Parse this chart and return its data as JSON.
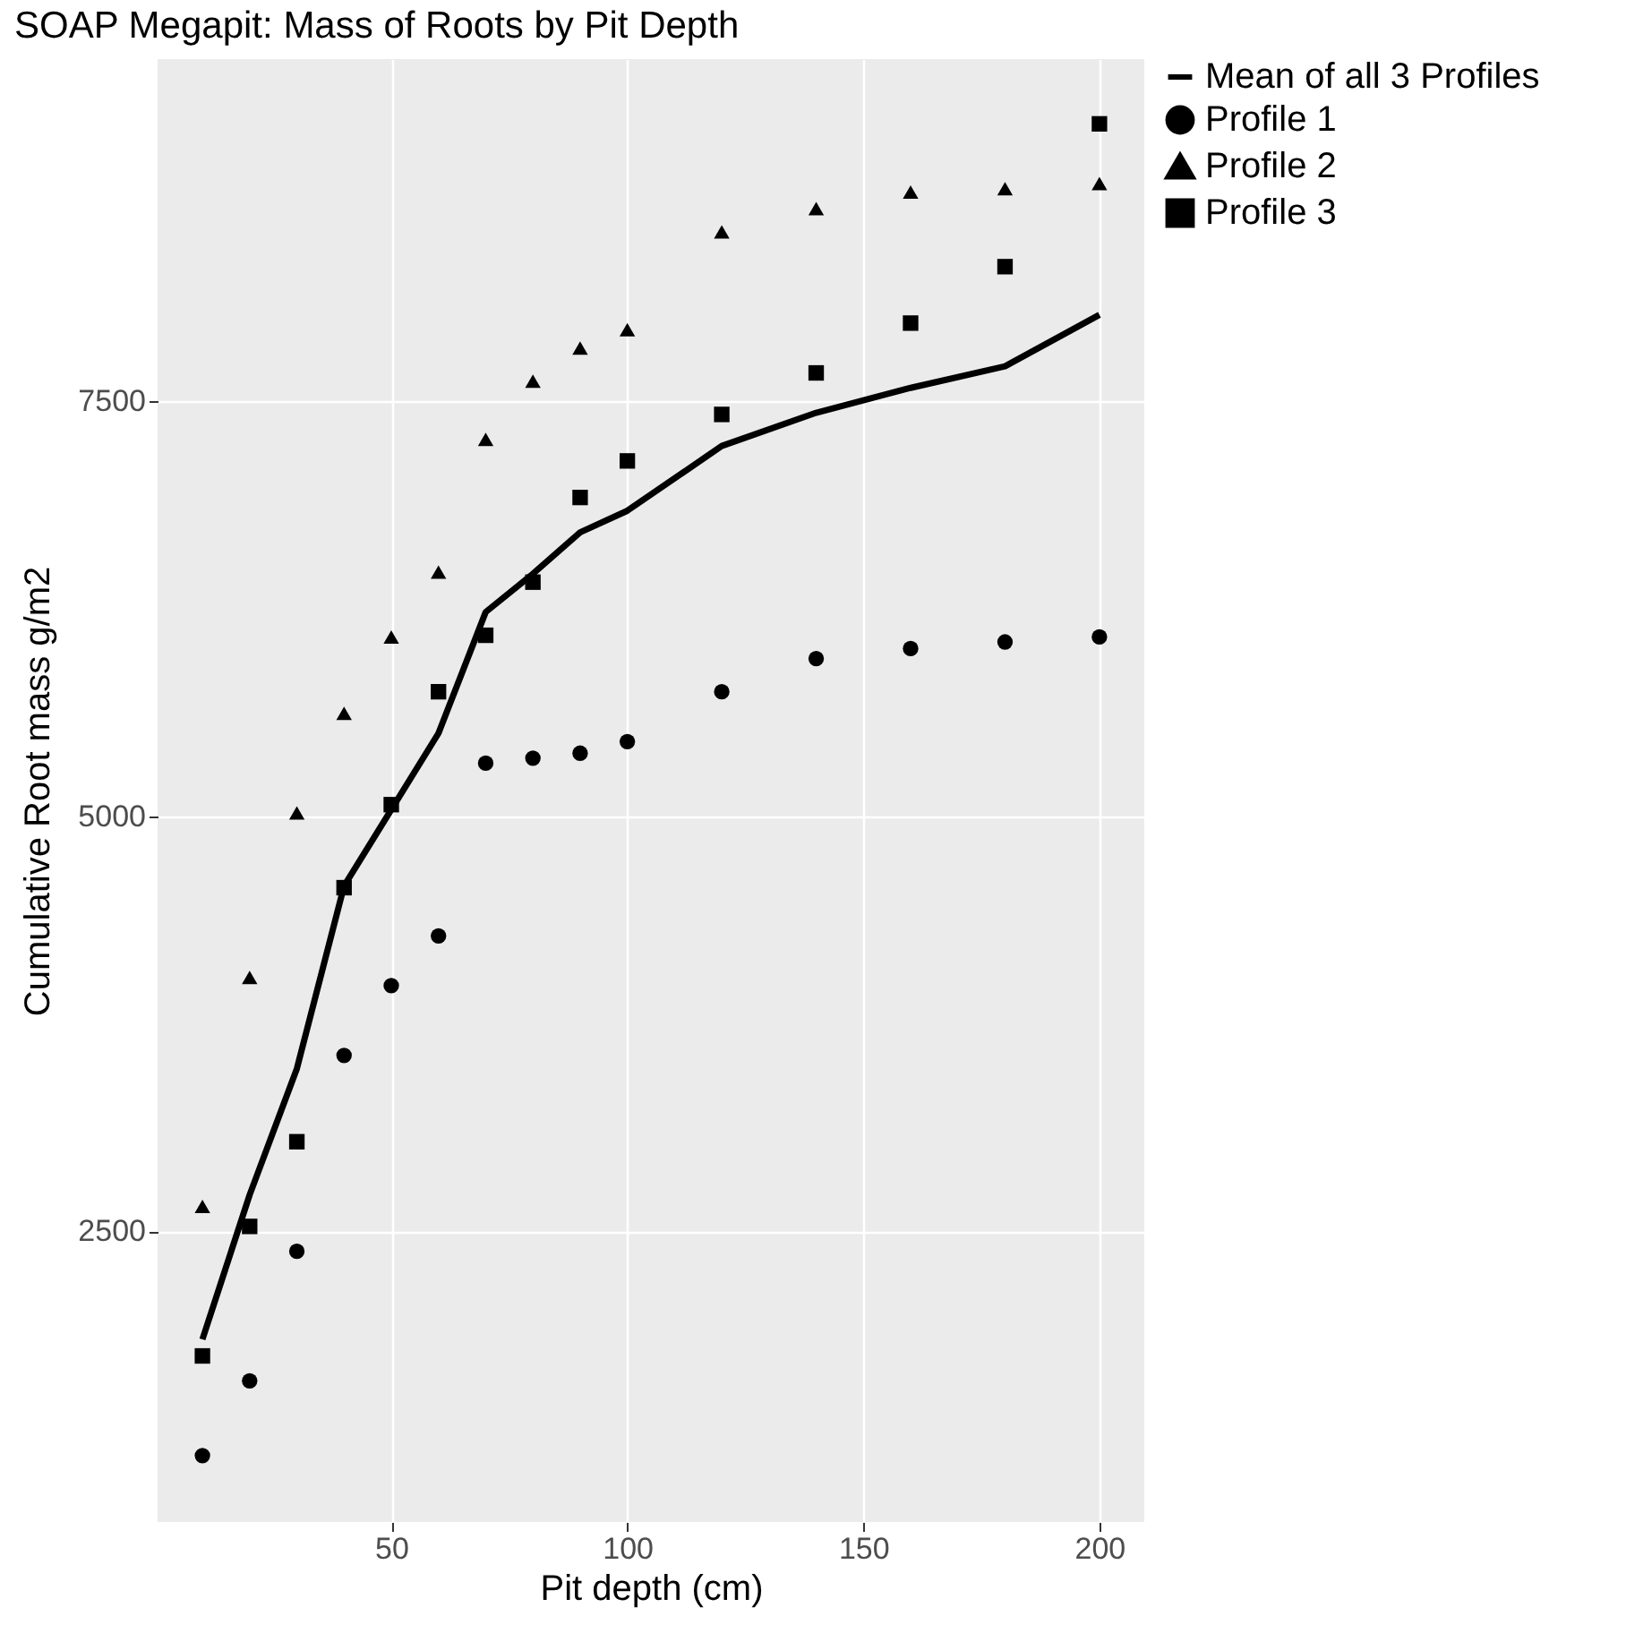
{
  "chart_data": {
    "type": "scatter",
    "title": "SOAP Megapit: Mass of Roots by Pit Depth",
    "xlabel": "Pit depth (cm)",
    "ylabel": "Cumulative Root mass g/m2",
    "x": [
      10,
      20,
      30,
      40,
      50,
      60,
      70,
      80,
      90,
      100,
      120,
      140,
      160,
      180,
      200
    ],
    "series": [
      {
        "name": "Mean of all 3 Profiles",
        "type": "line",
        "marker": "none",
        "line_style": "solid",
        "color": "#000000",
        "values": [
          1850,
          2720,
          3480,
          4580,
          5040,
          5500,
          6230,
          6460,
          6710,
          6840,
          7230,
          7430,
          7580,
          7710,
          8020
        ]
      },
      {
        "name": "Profile 1",
        "marker": "circle",
        "color": "#000000",
        "values": [
          1150,
          1600,
          2380,
          3560,
          3980,
          4280,
          5320,
          5350,
          5380,
          5450,
          5750,
          5950,
          6010,
          6050,
          6080
        ]
      },
      {
        "name": "Profile 2",
        "marker": "triangle",
        "color": "#000000",
        "values": [
          2650,
          4030,
          5020,
          5620,
          6080,
          6470,
          7270,
          7620,
          7820,
          7930,
          8520,
          8660,
          8760,
          8780,
          8810
        ]
      },
      {
        "name": "Profile 3",
        "marker": "square",
        "color": "#000000",
        "values": [
          1750,
          2530,
          3040,
          4570,
          5070,
          5750,
          6090,
          6410,
          6920,
          7140,
          7420,
          7670,
          7970,
          8310,
          9170
        ]
      }
    ],
    "xlim": [
      0.5,
      209.5
    ],
    "ylim": [
      750,
      9560
    ],
    "xticks": [
      50,
      100,
      150,
      200
    ],
    "yticks": [
      2500,
      5000,
      7500
    ],
    "grid": true,
    "legend": "right"
  }
}
